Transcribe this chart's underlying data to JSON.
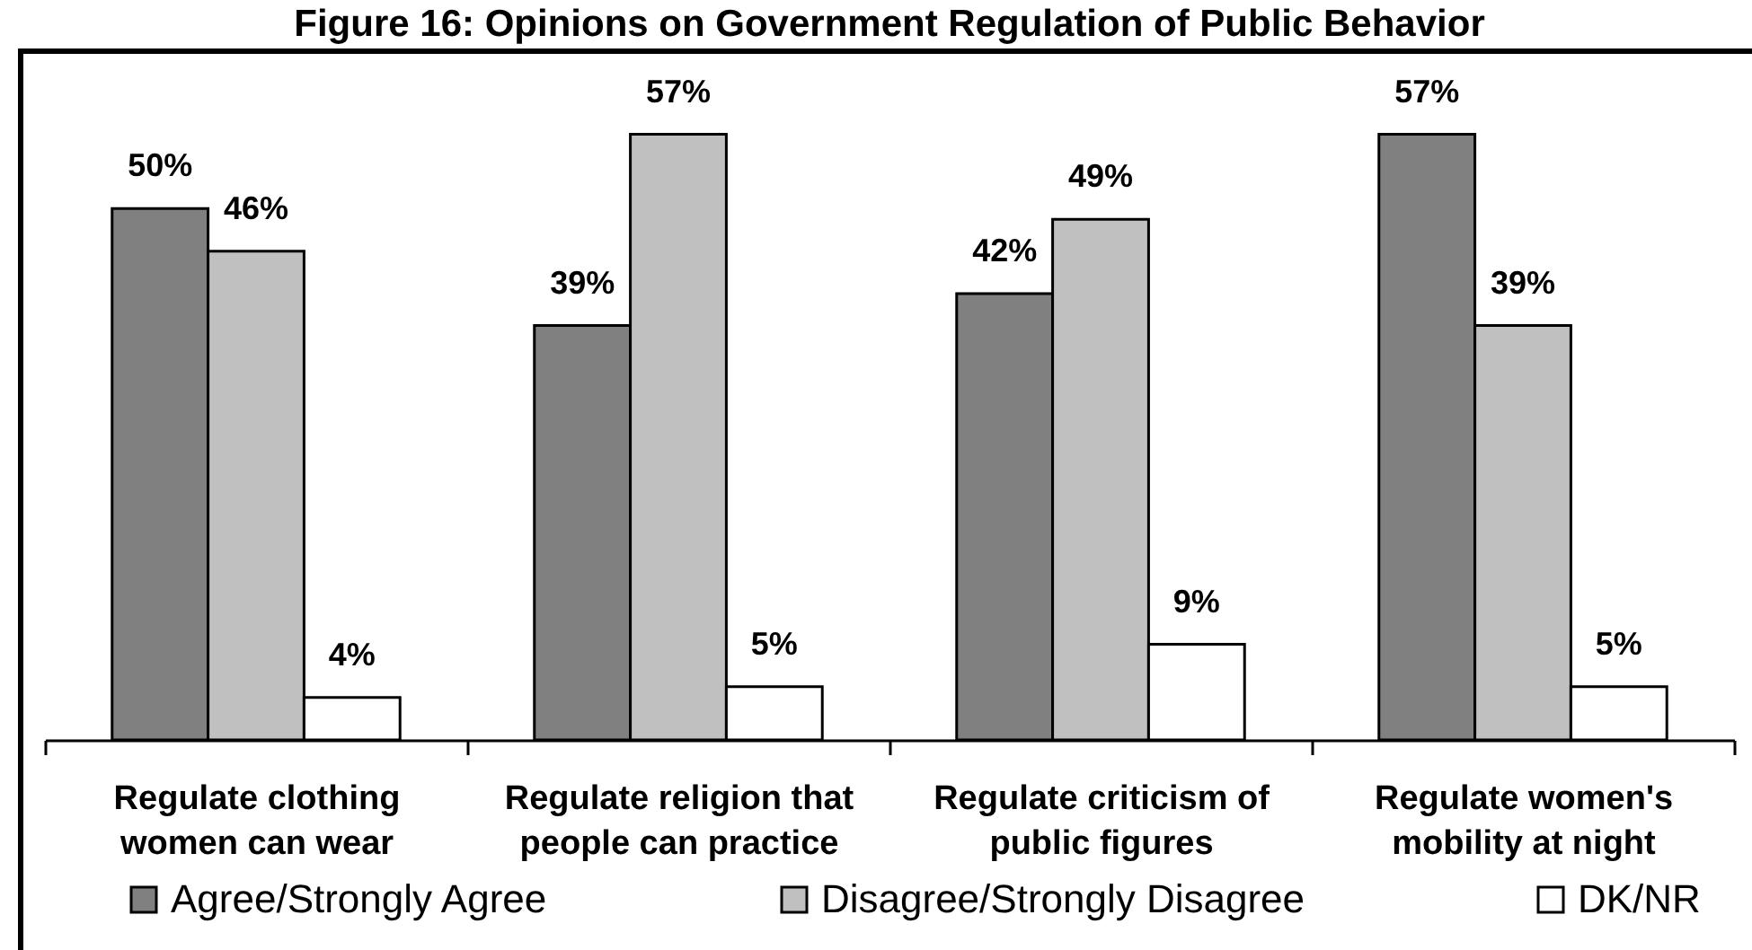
{
  "chart_data": {
    "type": "bar",
    "title": "Figure 16: Opinions on Government Regulation of Public Behavior",
    "categories": [
      "Regulate clothing women can wear",
      "Regulate religion that people can practice",
      "Regulate criticism of public figures",
      "Regulate women's mobility at night"
    ],
    "series": [
      {
        "name": "Agree/Strongly Agree",
        "color": "#808080",
        "values": [
          50,
          39,
          42,
          57
        ],
        "value_labels": [
          "50%",
          "39%",
          "42%",
          "57%"
        ]
      },
      {
        "name": "Disagree/Strongly Disagree",
        "color": "#c0c0c0",
        "values": [
          46,
          57,
          49,
          39
        ],
        "value_labels": [
          "46%",
          "57%",
          "49%",
          "39%"
        ]
      },
      {
        "name": "DK/NR",
        "color": "#ffffff",
        "values": [
          4,
          5,
          9,
          5
        ],
        "value_labels": [
          "4%",
          "5%",
          "9%",
          "5%"
        ]
      }
    ],
    "legend": "bottom",
    "tick_labels": "x"
  }
}
